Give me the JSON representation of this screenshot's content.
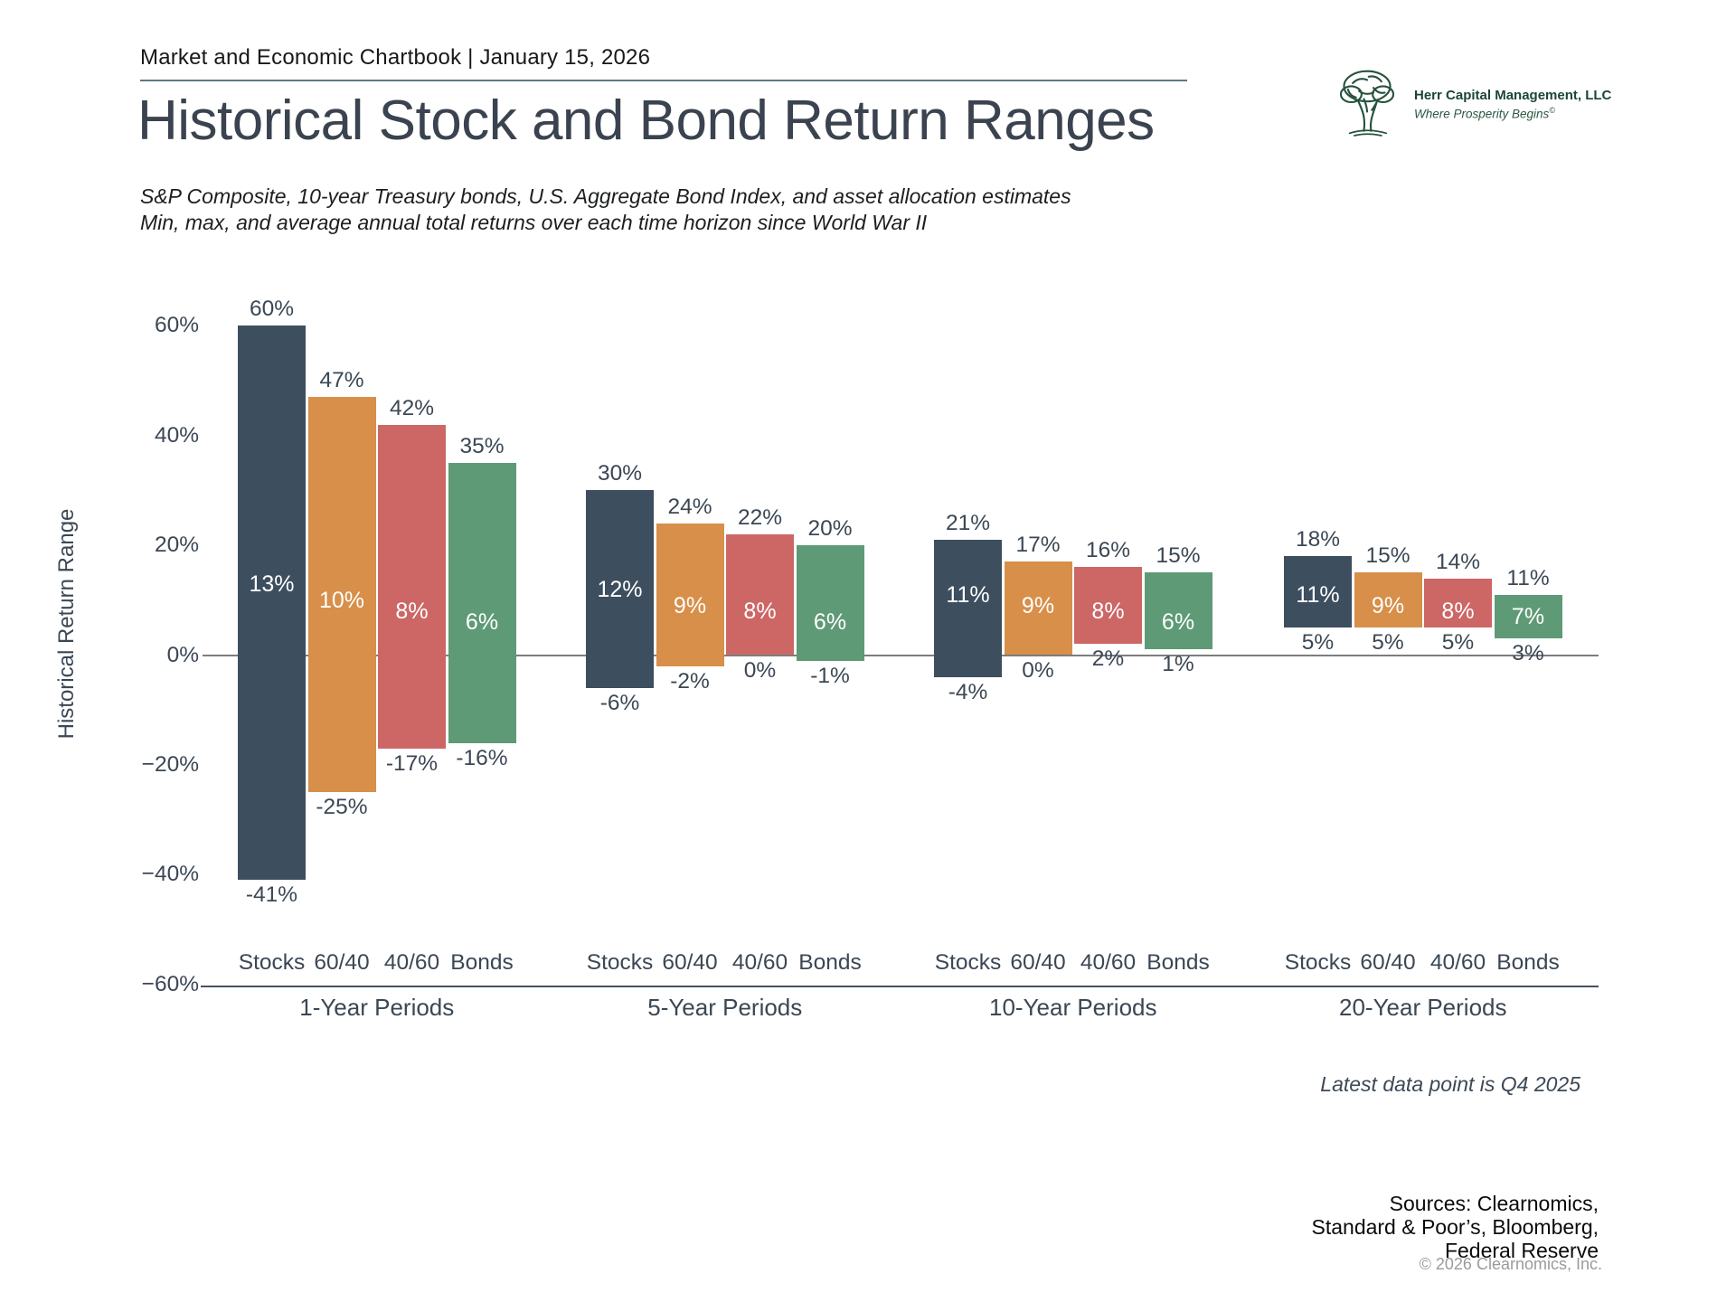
{
  "header": {
    "chartbook_line": "Market and Economic Chartbook | January 15, 2026"
  },
  "logo": {
    "name": "Herr Capital Management, LLC",
    "tagline": "Where Prosperity Begins",
    "reg_mark": "©"
  },
  "title": "Historical Stock and Bond Return Ranges",
  "subtitle_line1": "S&P Composite, 10-year Treasury bonds, U.S. Aggregate Bond Index, and asset allocation estimates",
  "subtitle_line2": "Min, max, and average annual total returns over each time horizon since World War II",
  "chart_data": {
    "type": "bar",
    "title": "Historical Stock and Bond Return Ranges",
    "ylabel": "Historical Return Range",
    "ylim": [
      -60,
      60
    ],
    "grid": false,
    "ytick_labels": [
      "60%",
      "40%",
      "20%",
      "0%",
      "−20%",
      "−40%",
      "−60%"
    ],
    "ytick_values": [
      60,
      40,
      20,
      0,
      -20,
      -40,
      -60
    ],
    "series_names": [
      "Stocks",
      "60/40",
      "40/60",
      "Bonds"
    ],
    "colors": {
      "Stocks": "#3d4e5f",
      "60/40": "#d78f4a",
      "40/60": "#cc6765",
      "Bonds": "#5e9a76"
    },
    "groups": [
      {
        "label": "1-Year Periods",
        "bars": [
          {
            "name": "Stocks",
            "max": 60,
            "avg": 13,
            "min": -41
          },
          {
            "name": "60/40",
            "max": 47,
            "avg": 10,
            "min": -25
          },
          {
            "name": "40/60",
            "max": 42,
            "avg": 8,
            "min": -17
          },
          {
            "name": "Bonds",
            "max": 35,
            "avg": 6,
            "min": -16
          }
        ]
      },
      {
        "label": "5-Year Periods",
        "bars": [
          {
            "name": "Stocks",
            "max": 30,
            "avg": 12,
            "min": -6
          },
          {
            "name": "60/40",
            "max": 24,
            "avg": 9,
            "min": -2
          },
          {
            "name": "40/60",
            "max": 22,
            "avg": 8,
            "min": 0
          },
          {
            "name": "Bonds",
            "max": 20,
            "avg": 6,
            "min": -1
          }
        ]
      },
      {
        "label": "10-Year Periods",
        "bars": [
          {
            "name": "Stocks",
            "max": 21,
            "avg": 11,
            "min": -4
          },
          {
            "name": "60/40",
            "max": 17,
            "avg": 9,
            "min": 0
          },
          {
            "name": "40/60",
            "max": 16,
            "avg": 8,
            "min": 2
          },
          {
            "name": "Bonds",
            "max": 15,
            "avg": 6,
            "min": 1
          }
        ]
      },
      {
        "label": "20-Year Periods",
        "bars": [
          {
            "name": "Stocks",
            "max": 18,
            "avg": 11,
            "min": 5
          },
          {
            "name": "60/40",
            "max": 15,
            "avg": 9,
            "min": 5
          },
          {
            "name": "40/60",
            "max": 14,
            "avg": 8,
            "min": 5
          },
          {
            "name": "Bonds",
            "max": 11,
            "avg": 7,
            "min": 3
          }
        ]
      }
    ]
  },
  "footnote": "Latest data point is Q4 2025",
  "sources": [
    "Sources: Clearnomics,",
    "Standard & Poor’s, Bloomberg,",
    "Federal Reserve"
  ],
  "copyright": "© 2026 Clearnomics, Inc."
}
